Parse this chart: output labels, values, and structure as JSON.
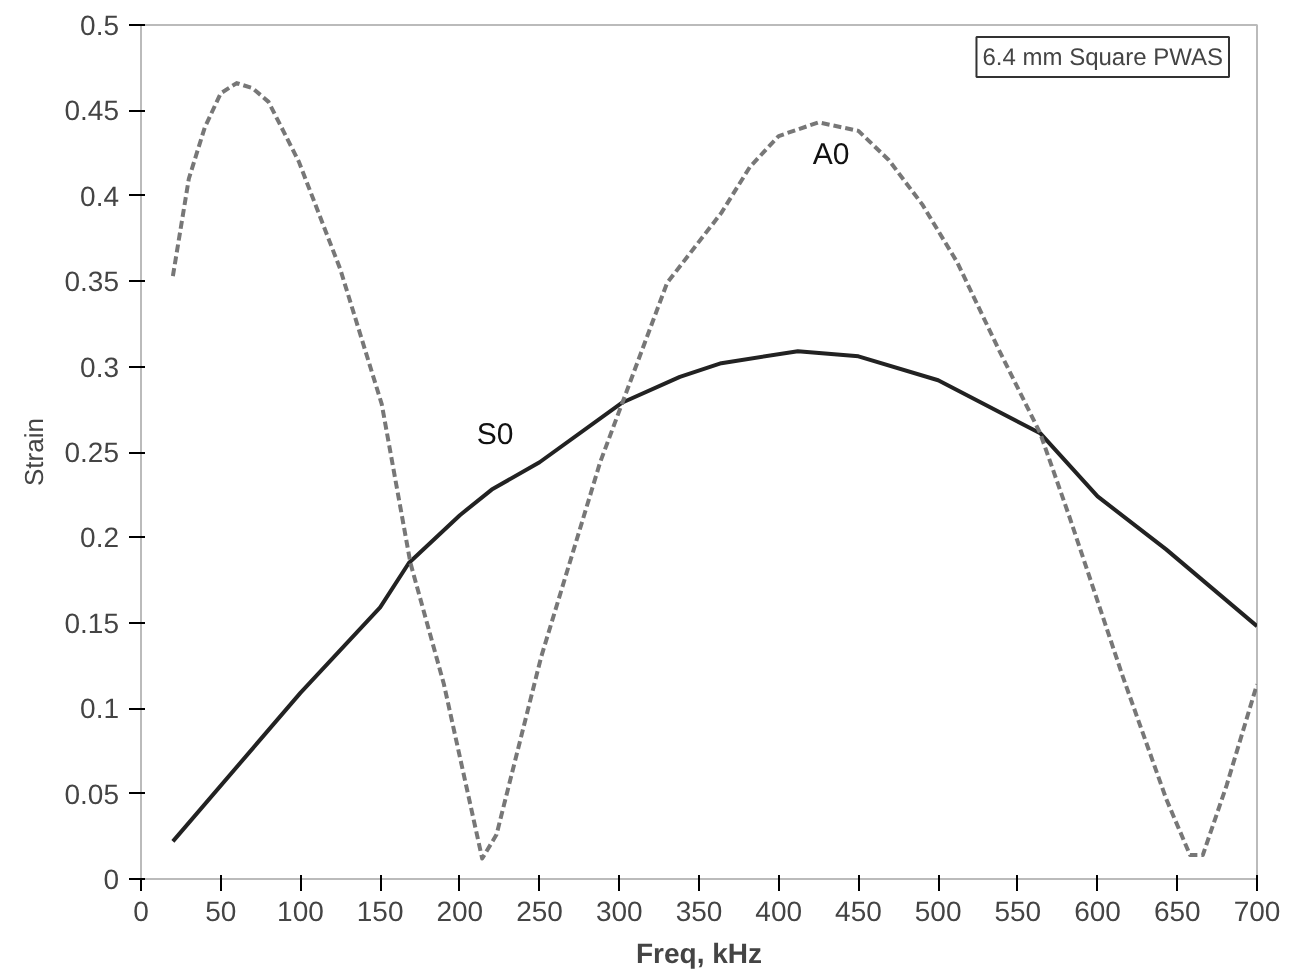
{
  "chart_data": {
    "type": "line",
    "xlabel": "Freq, kHz",
    "ylabel": "Strain",
    "xlim": [
      0,
      700
    ],
    "ylim": [
      0,
      0.5
    ],
    "xticks": [
      0,
      50,
      100,
      150,
      200,
      250,
      300,
      350,
      400,
      450,
      500,
      550,
      600,
      650,
      700
    ],
    "yticks": [
      0,
      0.05,
      0.1,
      0.15,
      0.2,
      0.25,
      0.3,
      0.35,
      0.4,
      0.45,
      0.5
    ],
    "grid": false,
    "annotations": [
      "6.4 mm Square PWAS"
    ],
    "series": [
      {
        "name": "S0",
        "color": "#222222",
        "line_style": "solid",
        "x": [
          20,
          100,
          150,
          168,
          200,
          220,
          250,
          302,
          338,
          364,
          412,
          450,
          500,
          564,
          600,
          643,
          700
        ],
        "values": [
          0.022,
          0.109,
          0.159,
          0.185,
          0.213,
          0.228,
          0.244,
          0.279,
          0.294,
          0.302,
          0.309,
          0.306,
          0.292,
          0.261,
          0.224,
          0.193,
          0.148
        ]
      },
      {
        "name": "A0",
        "color": "#777777",
        "line_style": "dashed",
        "x": [
          20,
          30,
          40,
          50,
          60,
          70,
          80,
          99,
          125,
          151,
          169,
          190,
          214,
          223,
          251,
          288,
          302,
          330,
          364,
          382,
          400,
          425,
          450,
          469,
          490,
          512,
          538,
          564,
          582,
          616,
          643,
          658,
          666,
          681,
          700
        ],
        "values": [
          0.353,
          0.41,
          0.44,
          0.46,
          0.466,
          0.463,
          0.455,
          0.42,
          0.357,
          0.278,
          0.185,
          0.114,
          0.012,
          0.026,
          0.13,
          0.244,
          0.279,
          0.349,
          0.39,
          0.417,
          0.435,
          0.443,
          0.438,
          0.421,
          0.395,
          0.361,
          0.31,
          0.261,
          0.213,
          0.118,
          0.047,
          0.014,
          0.014,
          0.055,
          0.114
        ]
      }
    ]
  }
}
